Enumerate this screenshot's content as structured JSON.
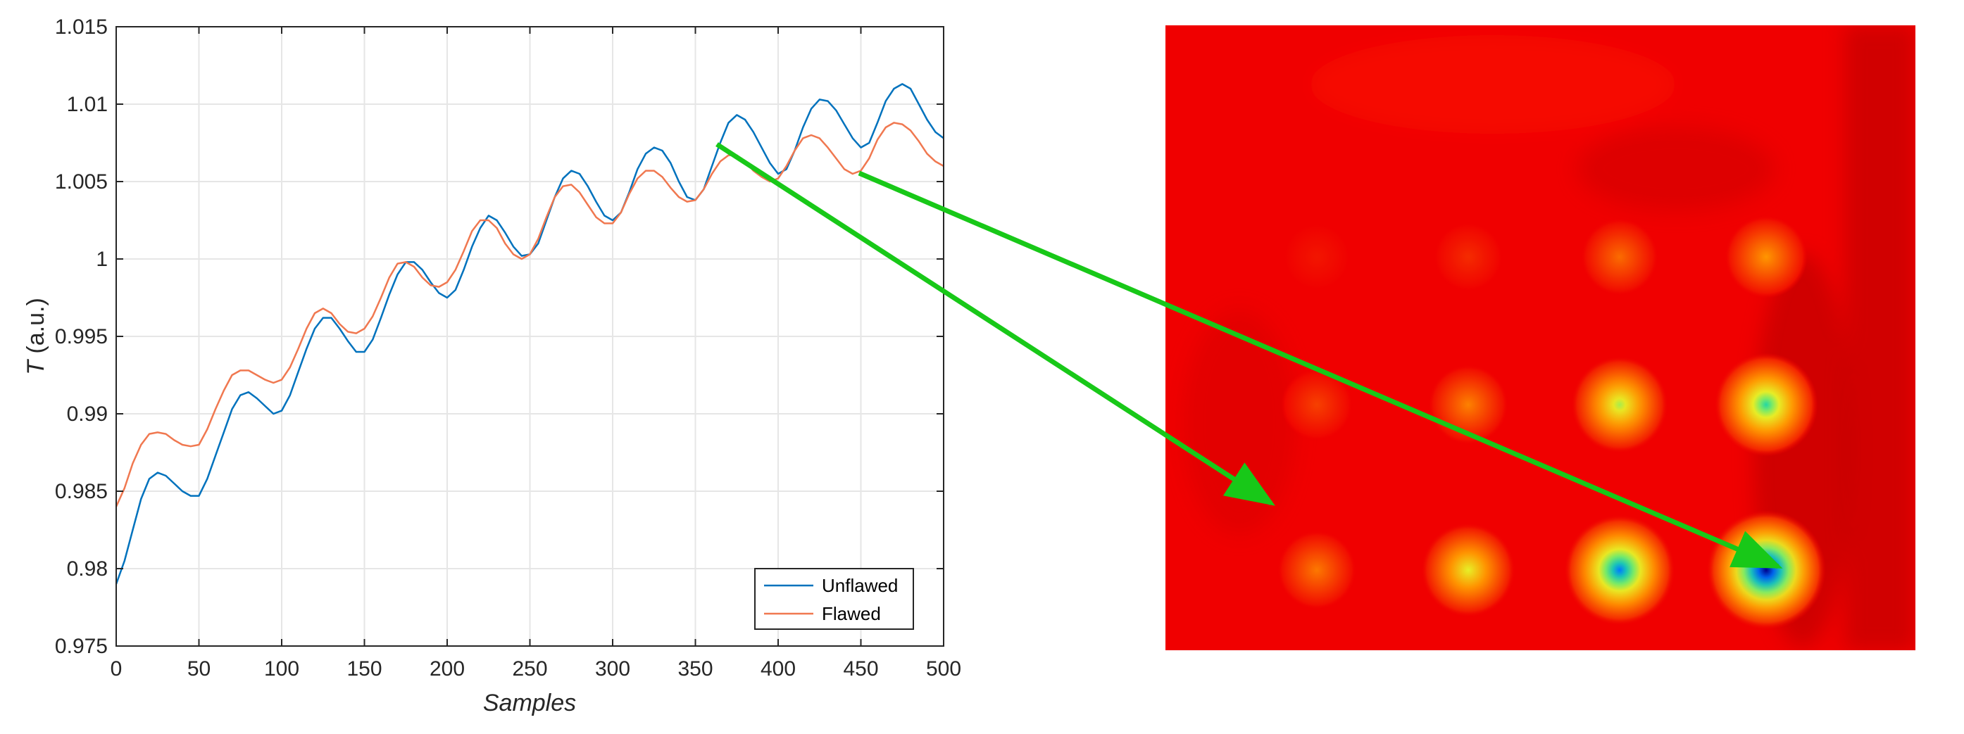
{
  "chart_data": {
    "type": "line",
    "xlabel": "Samples",
    "ylabel_symbol": "T",
    "ylabel_unit": " (a.u.)",
    "xlim": [
      0,
      500
    ],
    "ylim": [
      0.975,
      1.015
    ],
    "x_ticks": [
      0,
      50,
      100,
      150,
      200,
      250,
      300,
      350,
      400,
      450,
      500
    ],
    "y_ticks": [
      0.975,
      0.98,
      0.985,
      0.99,
      0.995,
      1,
      1.005,
      1.01,
      1.015
    ],
    "x_tick_labels": [
      "0",
      "50",
      "100",
      "150",
      "200",
      "250",
      "300",
      "350",
      "400",
      "450",
      "500"
    ],
    "y_tick_labels": [
      "0.975",
      "0.98",
      "0.985",
      "0.99",
      "0.995",
      "1",
      "1.005",
      "1.01",
      "1.015"
    ],
    "grid": true,
    "legend_position": "bottom-right",
    "series": [
      {
        "name": "Unflawed",
        "color": "#0072BD",
        "x": [
          0,
          5,
          10,
          15,
          20,
          25,
          30,
          35,
          40,
          45,
          50,
          55,
          60,
          65,
          70,
          75,
          80,
          85,
          90,
          95,
          100,
          105,
          110,
          115,
          120,
          125,
          130,
          135,
          140,
          145,
          150,
          155,
          160,
          165,
          170,
          175,
          180,
          185,
          190,
          195,
          200,
          205,
          210,
          215,
          220,
          225,
          230,
          235,
          240,
          245,
          250,
          255,
          260,
          265,
          270,
          275,
          280,
          285,
          290,
          295,
          300,
          305,
          310,
          315,
          320,
          325,
          330,
          335,
          340,
          345,
          350,
          355,
          360,
          365,
          370,
          375,
          380,
          385,
          390,
          395,
          400,
          405,
          410,
          415,
          420,
          425,
          430,
          435,
          440,
          445,
          450,
          455,
          460,
          465,
          470,
          475,
          480,
          485,
          490,
          495,
          500
        ],
        "values": [
          0.979,
          0.9805,
          0.9825,
          0.9845,
          0.9858,
          0.9862,
          0.986,
          0.9855,
          0.985,
          0.9847,
          0.9847,
          0.9858,
          0.9873,
          0.9888,
          0.9903,
          0.9912,
          0.9914,
          0.991,
          0.9905,
          0.99,
          0.9902,
          0.9912,
          0.9927,
          0.9942,
          0.9955,
          0.9962,
          0.9962,
          0.9955,
          0.9947,
          0.994,
          0.994,
          0.9948,
          0.9962,
          0.9977,
          0.999,
          0.9998,
          0.9998,
          0.9993,
          0.9985,
          0.9978,
          0.9975,
          0.998,
          0.9993,
          1.0008,
          1.002,
          1.0028,
          1.0025,
          1.0017,
          1.0008,
          1.0002,
          1.0003,
          1.001,
          1.0025,
          1.004,
          1.0052,
          1.0057,
          1.0055,
          1.0047,
          1.0037,
          1.0028,
          1.0025,
          1.003,
          1.0043,
          1.0058,
          1.0068,
          1.0072,
          1.007,
          1.0062,
          1.005,
          1.004,
          1.0038,
          1.0045,
          1.006,
          1.0075,
          1.0088,
          1.0093,
          1.009,
          1.0082,
          1.0072,
          1.0062,
          1.0055,
          1.0058,
          1.007,
          1.0085,
          1.0097,
          1.0103,
          1.0102,
          1.0096,
          1.0087,
          1.0078,
          1.0072,
          1.0075,
          1.0088,
          1.0102,
          1.011,
          1.0113,
          1.011,
          1.01,
          1.009,
          1.0082,
          1.0078
        ]
      },
      {
        "name": "Flawed",
        "color": "#F07850",
        "x": [
          0,
          5,
          10,
          15,
          20,
          25,
          30,
          35,
          40,
          45,
          50,
          55,
          60,
          65,
          70,
          75,
          80,
          85,
          90,
          95,
          100,
          105,
          110,
          115,
          120,
          125,
          130,
          135,
          140,
          145,
          150,
          155,
          160,
          165,
          170,
          175,
          180,
          185,
          190,
          195,
          200,
          205,
          210,
          215,
          220,
          225,
          230,
          235,
          240,
          245,
          250,
          255,
          260,
          265,
          270,
          275,
          280,
          285,
          290,
          295,
          300,
          305,
          310,
          315,
          320,
          325,
          330,
          335,
          340,
          345,
          350,
          355,
          360,
          365,
          370,
          375,
          380,
          385,
          390,
          395,
          400,
          405,
          410,
          415,
          420,
          425,
          430,
          435,
          440,
          445,
          450,
          455,
          460,
          465,
          470,
          475,
          480,
          485,
          490,
          495,
          500
        ],
        "values": [
          0.984,
          0.9852,
          0.9868,
          0.988,
          0.9887,
          0.9888,
          0.9887,
          0.9883,
          0.988,
          0.9879,
          0.988,
          0.989,
          0.9903,
          0.9915,
          0.9925,
          0.9928,
          0.9928,
          0.9925,
          0.9922,
          0.992,
          0.9922,
          0.993,
          0.9942,
          0.9955,
          0.9965,
          0.9968,
          0.9965,
          0.9958,
          0.9953,
          0.9952,
          0.9955,
          0.9963,
          0.9975,
          0.9988,
          0.9997,
          0.9998,
          0.9995,
          0.9988,
          0.9983,
          0.9982,
          0.9985,
          0.9993,
          1.0005,
          1.0018,
          1.0025,
          1.0025,
          1.002,
          1.001,
          1.0003,
          1.0,
          1.0003,
          1.0013,
          1.0027,
          1.004,
          1.0047,
          1.0048,
          1.0043,
          1.0035,
          1.0027,
          1.0023,
          1.0023,
          1.003,
          1.0042,
          1.0052,
          1.0057,
          1.0057,
          1.0053,
          1.0046,
          1.004,
          1.0037,
          1.0038,
          1.0045,
          1.0055,
          1.0063,
          1.0067,
          1.0067,
          1.0063,
          1.0057,
          1.0053,
          1.005,
          1.0052,
          1.006,
          1.007,
          1.0078,
          1.008,
          1.0078,
          1.0072,
          1.0065,
          1.0058,
          1.0055,
          1.0057,
          1.0065,
          1.0077,
          1.0085,
          1.0088,
          1.0087,
          1.0083,
          1.0076,
          1.0068,
          1.0063,
          1.006
        ]
      }
    ]
  },
  "heatmap": {
    "background_color": "#F00000",
    "dark_band_color": "#B80000",
    "spots": [
      {
        "col": 1,
        "row": 1,
        "intensity": 0.05
      },
      {
        "col": 2,
        "row": 1,
        "intensity": 0.1
      },
      {
        "col": 3,
        "row": 1,
        "intensity": 0.25
      },
      {
        "col": 4,
        "row": 1,
        "intensity": 0.35
      },
      {
        "col": 1,
        "row": 2,
        "intensity": 0.15
      },
      {
        "col": 2,
        "row": 2,
        "intensity": 0.3
      },
      {
        "col": 3,
        "row": 2,
        "intensity": 0.6
      },
      {
        "col": 4,
        "row": 2,
        "intensity": 0.72
      },
      {
        "col": 1,
        "row": 3,
        "intensity": 0.28
      },
      {
        "col": 2,
        "row": 3,
        "intensity": 0.55
      },
      {
        "col": 3,
        "row": 3,
        "intensity": 0.85
      },
      {
        "col": 4,
        "row": 3,
        "intensity": 1.0
      }
    ]
  },
  "arrows": {
    "color": "#18C818"
  }
}
